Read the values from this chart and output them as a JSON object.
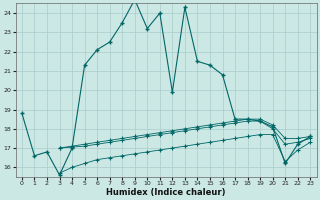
{
  "xlabel": "Humidex (Indice chaleur)",
  "bg_color": "#cce8e4",
  "grid_color": "#aacccc",
  "line_color": "#006666",
  "xlim": [
    -0.5,
    23.5
  ],
  "ylim": [
    15.5,
    24.5
  ],
  "xticks": [
    0,
    1,
    2,
    3,
    4,
    5,
    6,
    7,
    8,
    9,
    10,
    11,
    12,
    13,
    14,
    15,
    16,
    17,
    18,
    19,
    20,
    21,
    22,
    23
  ],
  "yticks": [
    16,
    17,
    18,
    19,
    20,
    21,
    22,
    23,
    24
  ],
  "line1_x": [
    0,
    1,
    2,
    3,
    4,
    5,
    6,
    7,
    8,
    9,
    10,
    11,
    12,
    13,
    14,
    15,
    16,
    17,
    18,
    19,
    20,
    21,
    22,
    23
  ],
  "line1_y": [
    18.8,
    16.6,
    16.8,
    15.6,
    17.0,
    21.3,
    22.1,
    22.5,
    23.5,
    24.7,
    23.2,
    24.0,
    19.9,
    24.3,
    21.5,
    21.3,
    20.8,
    18.5,
    18.5,
    18.4,
    18.1,
    16.2,
    17.2,
    17.6
  ],
  "line2_x": [
    3,
    4,
    5,
    6,
    7,
    8,
    9,
    10,
    11,
    12,
    13,
    14,
    15,
    16,
    17,
    18,
    19,
    20,
    21,
    22,
    23
  ],
  "line2_y": [
    17.0,
    17.1,
    17.2,
    17.3,
    17.4,
    17.5,
    17.6,
    17.7,
    17.8,
    17.9,
    18.0,
    18.1,
    18.2,
    18.3,
    18.4,
    18.5,
    18.5,
    18.2,
    17.5,
    17.5,
    17.6
  ],
  "line3_x": [
    3,
    4,
    5,
    6,
    7,
    8,
    9,
    10,
    11,
    12,
    13,
    14,
    15,
    16,
    17,
    18,
    19,
    20,
    21,
    22,
    23
  ],
  "line3_y": [
    17.0,
    17.05,
    17.1,
    17.2,
    17.3,
    17.4,
    17.5,
    17.6,
    17.7,
    17.8,
    17.9,
    18.0,
    18.1,
    18.2,
    18.3,
    18.4,
    18.4,
    18.0,
    17.2,
    17.3,
    17.5
  ],
  "line4_x": [
    3,
    4,
    5,
    6,
    7,
    8,
    9,
    10,
    11,
    12,
    13,
    14,
    15,
    16,
    17,
    18,
    19,
    20,
    21,
    22,
    23
  ],
  "line4_y": [
    15.7,
    16.0,
    16.2,
    16.4,
    16.5,
    16.6,
    16.7,
    16.8,
    16.9,
    17.0,
    17.1,
    17.2,
    17.3,
    17.4,
    17.5,
    17.6,
    17.7,
    17.7,
    16.3,
    16.9,
    17.3
  ]
}
